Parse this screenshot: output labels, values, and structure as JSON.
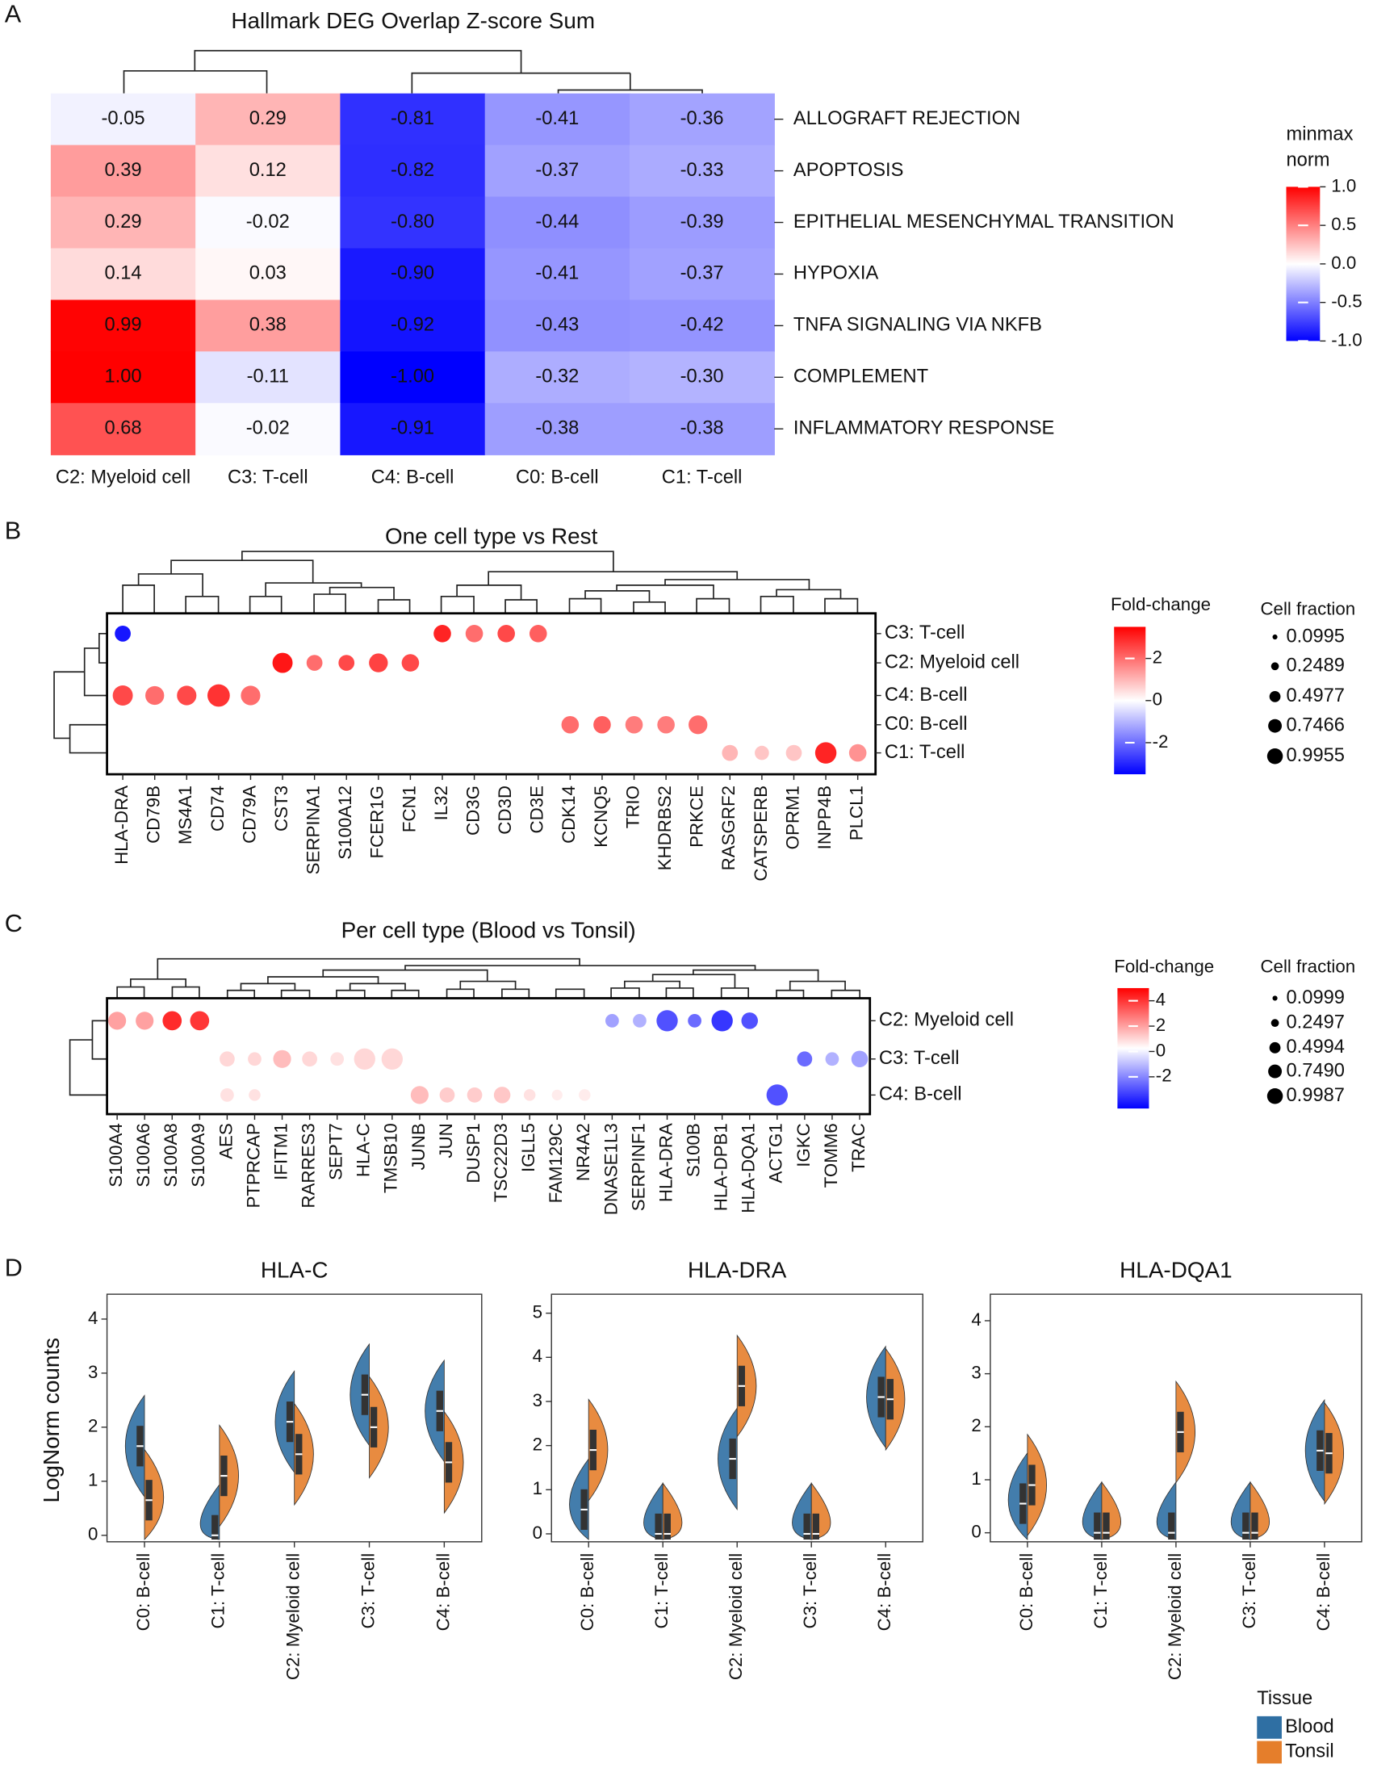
{
  "chart_data": [
    {
      "type": "heatmap",
      "panel": "A",
      "title": "Hallmark DEG  Overlap Z-score Sum",
      "columns": [
        "C2:  Myeloid cell",
        "C3: T-cell",
        "C4: B-cell",
        "C0: B-cell",
        "C1: T-cell"
      ],
      "rows": [
        "ALLOGRAFT REJECTION",
        "APOPTOSIS",
        "EPITHELIAL MESENCHYMAL TRANSITION",
        "HYPOXIA",
        "TNFA SIGNALING VIA NKFB",
        "COMPLEMENT",
        "INFLAMMATORY RESPONSE"
      ],
      "values": [
        [
          -0.05,
          0.29,
          -0.81,
          -0.41,
          -0.36
        ],
        [
          0.39,
          0.12,
          -0.82,
          -0.37,
          -0.33
        ],
        [
          0.29,
          -0.02,
          -0.8,
          -0.44,
          -0.39
        ],
        [
          0.14,
          0.03,
          -0.9,
          -0.41,
          -0.37
        ],
        [
          0.99,
          0.38,
          -0.92,
          -0.43,
          -0.42
        ],
        [
          1.0,
          -0.11,
          -1.0,
          -0.32,
          -0.3
        ],
        [
          0.68,
          -0.02,
          -0.91,
          -0.38,
          -0.38
        ]
      ],
      "value_labels": [
        [
          "-0.05",
          "0.29",
          "-0.81",
          "-0.41",
          "-0.36"
        ],
        [
          "0.39",
          "0.12",
          "-0.82",
          "-0.37",
          "-0.33"
        ],
        [
          "0.29",
          "-0.02",
          "-0.80",
          "-0.44",
          "-0.39"
        ],
        [
          "0.14",
          "0.03",
          "-0.90",
          "-0.41",
          "-0.37"
        ],
        [
          "0.99",
          "0.38",
          "-0.92",
          "-0.43",
          "-0.42"
        ],
        [
          "1.00",
          "-0.11",
          "-1.00",
          "-0.32",
          "-0.30"
        ],
        [
          "0.68",
          "-0.02",
          "-0.91",
          "-0.38",
          "-0.38"
        ]
      ],
      "colorbar_title": [
        "minmax",
        "norm"
      ],
      "clim": [
        -1,
        1
      ],
      "colors": [
        "#0000ff",
        "#ffffff",
        "#ff0000"
      ],
      "colorbar_ticks": [
        {
          "value": 1,
          "label": "1.0"
        },
        0.5,
        {
          "value": 0,
          "label": "0.0"
        },
        -0.5,
        {
          "value": -1,
          "label": "-1.0"
        }
      ]
    },
    {
      "type": "dotplot",
      "panel": "B",
      "title": "One cell type vs Rest",
      "genes": [
        "HLA-DRA",
        "CD79B",
        "MS4A1",
        "CD74",
        "CD79A",
        "CST3",
        "SERPINA1",
        "S100A12",
        "FCER1G",
        "FCN1",
        "IL32",
        "CD3G",
        "CD3D",
        "CD3E",
        "CDK14",
        "KCNQ5",
        "TRIO",
        "KHDRBS2",
        "PRKCE",
        "RASGRF2",
        "CATSPERB",
        "OPRM1",
        "INPP4B",
        "PLCL1"
      ],
      "groups": [
        "C3:  T-cell",
        "C2:  Myeloid cell",
        "C4:  B-cell",
        "C0:  B-cell",
        "C1:  T-cell"
      ],
      "fold_change": [
        [
          -3.2,
          null,
          null,
          null,
          null,
          null,
          null,
          null,
          null,
          null,
          3.0,
          2.0,
          2.5,
          2.2,
          null,
          null,
          null,
          null,
          null,
          null,
          null,
          null,
          null,
          null
        ],
        [
          null,
          null,
          null,
          null,
          null,
          3.2,
          2.0,
          2.5,
          2.6,
          2.5,
          null,
          null,
          null,
          null,
          null,
          null,
          null,
          null,
          null,
          null,
          null,
          null,
          null,
          null
        ],
        [
          2.5,
          2.0,
          2.5,
          2.8,
          2.0,
          null,
          null,
          null,
          null,
          null,
          null,
          null,
          null,
          null,
          null,
          null,
          null,
          null,
          null,
          null,
          null,
          null,
          null,
          null
        ],
        [
          null,
          null,
          null,
          null,
          null,
          null,
          null,
          null,
          null,
          null,
          null,
          null,
          null,
          null,
          2.0,
          2.2,
          1.8,
          1.8,
          2.0,
          null,
          null,
          null,
          null,
          null
        ],
        [
          null,
          null,
          null,
          null,
          null,
          null,
          null,
          null,
          null,
          null,
          null,
          null,
          null,
          null,
          null,
          null,
          null,
          null,
          null,
          1.0,
          0.8,
          0.8,
          3.0,
          1.5
        ]
      ],
      "fraction": [
        [
          0.5,
          null,
          null,
          null,
          null,
          null,
          null,
          null,
          null,
          null,
          0.6,
          0.6,
          0.6,
          0.6,
          null,
          null,
          null,
          null,
          null,
          null,
          null,
          null,
          null,
          null
        ],
        [
          null,
          null,
          null,
          null,
          null,
          0.8,
          0.5,
          0.5,
          0.7,
          0.6,
          null,
          null,
          null,
          null,
          null,
          null,
          null,
          null,
          null,
          null,
          null,
          null,
          null,
          null
        ],
        [
          0.8,
          0.7,
          0.75,
          0.99,
          0.75,
          null,
          null,
          null,
          null,
          null,
          null,
          null,
          null,
          null,
          null,
          null,
          null,
          null,
          null,
          null,
          null,
          null,
          null,
          null
        ],
        [
          null,
          null,
          null,
          null,
          null,
          null,
          null,
          null,
          null,
          null,
          null,
          null,
          null,
          null,
          0.6,
          0.6,
          0.6,
          0.6,
          0.7,
          null,
          null,
          null,
          null,
          null
        ],
        [
          null,
          null,
          null,
          null,
          null,
          null,
          null,
          null,
          null,
          null,
          null,
          null,
          null,
          null,
          null,
          null,
          null,
          null,
          null,
          0.5,
          0.4,
          0.5,
          0.9,
          0.6
        ]
      ],
      "colorbar_title": "Fold-change",
      "clim": [
        -3.5,
        3.5
      ],
      "colors": [
        "#0000ff",
        "#ffffff",
        "#ff0000"
      ],
      "colorbar_ticks": [
        2,
        0,
        -2
      ],
      "size_title": "Cell fraction",
      "size_legend": [
        0.0995,
        0.2489,
        0.4977,
        0.7466,
        0.9955
      ]
    },
    {
      "type": "dotplot",
      "panel": "C",
      "title": "Per cell type (Blood vs Tonsil)",
      "genes": [
        "S100A4",
        "S100A6",
        "S100A8",
        "S100A9",
        "AES",
        "PTPRCAP",
        "IFITM1",
        "RARRES3",
        "SEPT7",
        "HLA-C",
        "TMSB10",
        "JUNB",
        "JUN",
        "DUSP1",
        "TSC22D3",
        "IGLL5",
        "FAM129C",
        "NR4A2",
        "DNASE1L3",
        "SERPINF1",
        "HLA-DRA",
        "S100B",
        "HLA-DPB1",
        "HLA-DQA1",
        "ACTG1",
        "IGKC",
        "TOMM6",
        "TRAC"
      ],
      "groups": [
        "C2: Myeloid cell",
        "C3: T-cell",
        "C4:  B-cell"
      ],
      "fold_change": [
        [
          2.0,
          2.0,
          4.2,
          4.0,
          null,
          null,
          null,
          null,
          null,
          null,
          null,
          null,
          null,
          null,
          null,
          null,
          null,
          null,
          -1.5,
          -1.2,
          -3.0,
          -2.5,
          -3.5,
          -3.0,
          null,
          null,
          null,
          null
        ],
        [
          null,
          null,
          null,
          null,
          1.0,
          1.0,
          1.5,
          1.0,
          0.8,
          1.0,
          1.0,
          null,
          null,
          null,
          null,
          null,
          null,
          null,
          null,
          null,
          null,
          null,
          null,
          null,
          null,
          -2.5,
          -1.2,
          -1.5
        ],
        [
          null,
          null,
          null,
          null,
          0.8,
          0.8,
          null,
          null,
          null,
          null,
          null,
          1.5,
          1.2,
          1.2,
          1.3,
          0.8,
          0.6,
          0.6,
          null,
          null,
          null,
          null,
          null,
          null,
          -3.0,
          null,
          null,
          null
        ]
      ],
      "fraction": [
        [
          0.7,
          0.7,
          0.8,
          0.8,
          null,
          null,
          null,
          null,
          null,
          null,
          null,
          null,
          null,
          null,
          null,
          null,
          null,
          null,
          0.4,
          0.4,
          0.99,
          0.4,
          0.99,
          0.6,
          null,
          null,
          null,
          null
        ],
        [
          null,
          null,
          null,
          null,
          0.5,
          0.4,
          0.7,
          0.5,
          0.4,
          0.99,
          0.99,
          null,
          null,
          null,
          null,
          null,
          null,
          null,
          null,
          null,
          null,
          null,
          null,
          null,
          null,
          0.5,
          0.4,
          0.6
        ],
        [
          null,
          null,
          null,
          null,
          0.4,
          0.3,
          null,
          null,
          null,
          null,
          null,
          0.7,
          0.5,
          0.5,
          0.6,
          0.3,
          0.25,
          0.3,
          null,
          null,
          null,
          null,
          null,
          null,
          0.99,
          null,
          null,
          null
        ]
      ],
      "colorbar_title": "Fold-change",
      "clim": [
        -4.5,
        5
      ],
      "colors": [
        "#0000ff",
        "#ffffff",
        "#ff0000"
      ],
      "colorbar_ticks": [
        4,
        2,
        0,
        -2
      ],
      "size_title": "Cell fraction",
      "size_legend": [
        0.0999,
        0.2497,
        0.4994,
        {
          "value": 0.749,
          "label": "0.7490"
        },
        0.9987
      ]
    },
    {
      "type": "violin",
      "panel": "D",
      "title": "HLA-C",
      "y_label": "LogNorm counts",
      "categories": [
        "C0:  B-cell",
        "C1:  T-cell",
        "C2:  Myeloid cell",
        "C3:  T-cell",
        "C4:  B-cell"
      ],
      "series": [
        {
          "name": "Blood",
          "color": "#2f6fa3",
          "values": [
            1.65,
            0,
            2.1,
            2.6,
            2.3
          ]
        },
        {
          "name": "Tonsil",
          "color": "#e57e2b",
          "values": [
            0.65,
            1.1,
            1.5,
            2.0,
            1.35
          ]
        }
      ],
      "ylim": [
        -0.12,
        4.46
      ],
      "yticks": [
        0,
        1,
        2,
        3,
        4
      ]
    },
    {
      "type": "violin",
      "title": "HLA-DRA",
      "categories": [
        "C0:  B-cell",
        "C1:  T-cell",
        "C2:  Myeloid cell",
        "C3:  T-cell",
        "C4:  B-cell"
      ],
      "series": [
        {
          "name": "Blood",
          "color": "#2f6fa3",
          "values": [
            0.55,
            0,
            1.7,
            0,
            3.1
          ]
        },
        {
          "name": "Tonsil",
          "color": "#e57e2b",
          "values": [
            1.9,
            0,
            3.35,
            0,
            3.05
          ]
        }
      ],
      "ylim": [
        -0.18,
        5.43
      ],
      "yticks": [
        0,
        1,
        2,
        3,
        4,
        5
      ]
    },
    {
      "type": "violin",
      "title": "HLA-DQA1",
      "legend_title": "Tissue",
      "categories": [
        "C0:  B-cell",
        "C1:  T-cell",
        "C2:  Myeloid cell",
        "C3:  T-cell",
        "C4:  B-cell"
      ],
      "series": [
        {
          "name": "Blood",
          "color": "#2f6fa3",
          "values": [
            0.55,
            0,
            0,
            0,
            1.55
          ]
        },
        {
          "name": "Tonsil",
          "color": "#e57e2b",
          "values": [
            0.9,
            0,
            1.9,
            0,
            1.5
          ]
        }
      ],
      "ylim": [
        -0.17,
        4.5
      ],
      "yticks": [
        0,
        1,
        2,
        3,
        4
      ]
    }
  ]
}
